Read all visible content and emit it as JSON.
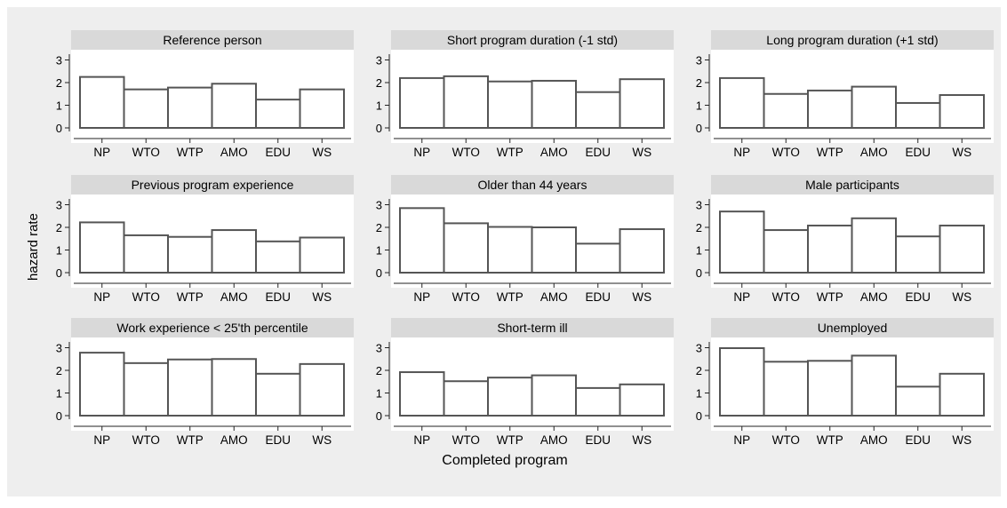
{
  "colors": {
    "background": "#eeeeee",
    "plot_background": "#ffffff",
    "panel_header": "#d9d9d9",
    "bar_fill": "#ffffff",
    "bar_stroke": "#555555",
    "axis": "#222222"
  },
  "ylabel": "hazard rate",
  "xlabel": "Completed program",
  "chart_data": [
    {
      "type": "bar",
      "title": "Reference person",
      "categories": [
        "NP",
        "WTO",
        "WTP",
        "AMO",
        "EDU",
        "WS"
      ],
      "values": [
        2.25,
        1.7,
        1.78,
        1.95,
        1.25,
        1.7
      ],
      "ylim": [
        0,
        3
      ],
      "yticks": [
        "0",
        "1",
        "2",
        "3"
      ],
      "grid": false
    },
    {
      "type": "bar",
      "title": "Short program duration (-1 std)",
      "categories": [
        "NP",
        "WTO",
        "WTP",
        "AMO",
        "EDU",
        "WS"
      ],
      "values": [
        2.2,
        2.28,
        2.05,
        2.08,
        1.58,
        2.15
      ],
      "ylim": [
        0,
        3
      ],
      "yticks": [
        "0",
        "1",
        "2",
        "3"
      ],
      "grid": false
    },
    {
      "type": "bar",
      "title": "Long program duration (+1 std)",
      "categories": [
        "NP",
        "WTO",
        "WTP",
        "AMO",
        "EDU",
        "WS"
      ],
      "values": [
        2.2,
        1.5,
        1.65,
        1.82,
        1.1,
        1.45
      ],
      "ylim": [
        0,
        3
      ],
      "yticks": [
        "0",
        "1",
        "2",
        "3"
      ],
      "grid": false
    },
    {
      "type": "bar",
      "title": "Previous program experience",
      "categories": [
        "NP",
        "WTO",
        "WTP",
        "AMO",
        "EDU",
        "WS"
      ],
      "values": [
        2.22,
        1.65,
        1.58,
        1.88,
        1.38,
        1.55
      ],
      "ylim": [
        0,
        3
      ],
      "yticks": [
        "0",
        "1",
        "2",
        "3"
      ],
      "grid": false
    },
    {
      "type": "bar",
      "title": "Older than 44 years",
      "categories": [
        "NP",
        "WTO",
        "WTP",
        "AMO",
        "EDU",
        "WS"
      ],
      "values": [
        2.85,
        2.18,
        2.02,
        2.0,
        1.28,
        1.92
      ],
      "ylim": [
        0,
        3
      ],
      "yticks": [
        "0",
        "1",
        "2",
        "3"
      ],
      "grid": false
    },
    {
      "type": "bar",
      "title": "Male participants",
      "categories": [
        "NP",
        "WTO",
        "WTP",
        "AMO",
        "EDU",
        "WS"
      ],
      "values": [
        2.7,
        1.88,
        2.08,
        2.4,
        1.6,
        2.08
      ],
      "ylim": [
        0,
        3
      ],
      "yticks": [
        "0",
        "1",
        "2",
        "3"
      ],
      "grid": false
    },
    {
      "type": "bar",
      "title": "Work experience < 25'th percentile",
      "categories": [
        "NP",
        "WTO",
        "WTP",
        "AMO",
        "EDU",
        "WS"
      ],
      "values": [
        2.78,
        2.32,
        2.48,
        2.5,
        1.85,
        2.28
      ],
      "ylim": [
        0,
        3
      ],
      "yticks": [
        "0",
        "1",
        "2",
        "3"
      ],
      "grid": false
    },
    {
      "type": "bar",
      "title": "Short-term ill",
      "categories": [
        "NP",
        "WTO",
        "WTP",
        "AMO",
        "EDU",
        "WS"
      ],
      "values": [
        1.92,
        1.52,
        1.68,
        1.78,
        1.22,
        1.38
      ],
      "ylim": [
        0,
        3
      ],
      "yticks": [
        "0",
        "1",
        "2",
        "3"
      ],
      "grid": false
    },
    {
      "type": "bar",
      "title": "Unemployed",
      "categories": [
        "NP",
        "WTO",
        "WTP",
        "AMO",
        "EDU",
        "WS"
      ],
      "values": [
        2.98,
        2.38,
        2.42,
        2.65,
        1.28,
        1.85
      ],
      "ylim": [
        0,
        3
      ],
      "yticks": [
        "0",
        "1",
        "2",
        "3"
      ],
      "grid": false
    }
  ]
}
